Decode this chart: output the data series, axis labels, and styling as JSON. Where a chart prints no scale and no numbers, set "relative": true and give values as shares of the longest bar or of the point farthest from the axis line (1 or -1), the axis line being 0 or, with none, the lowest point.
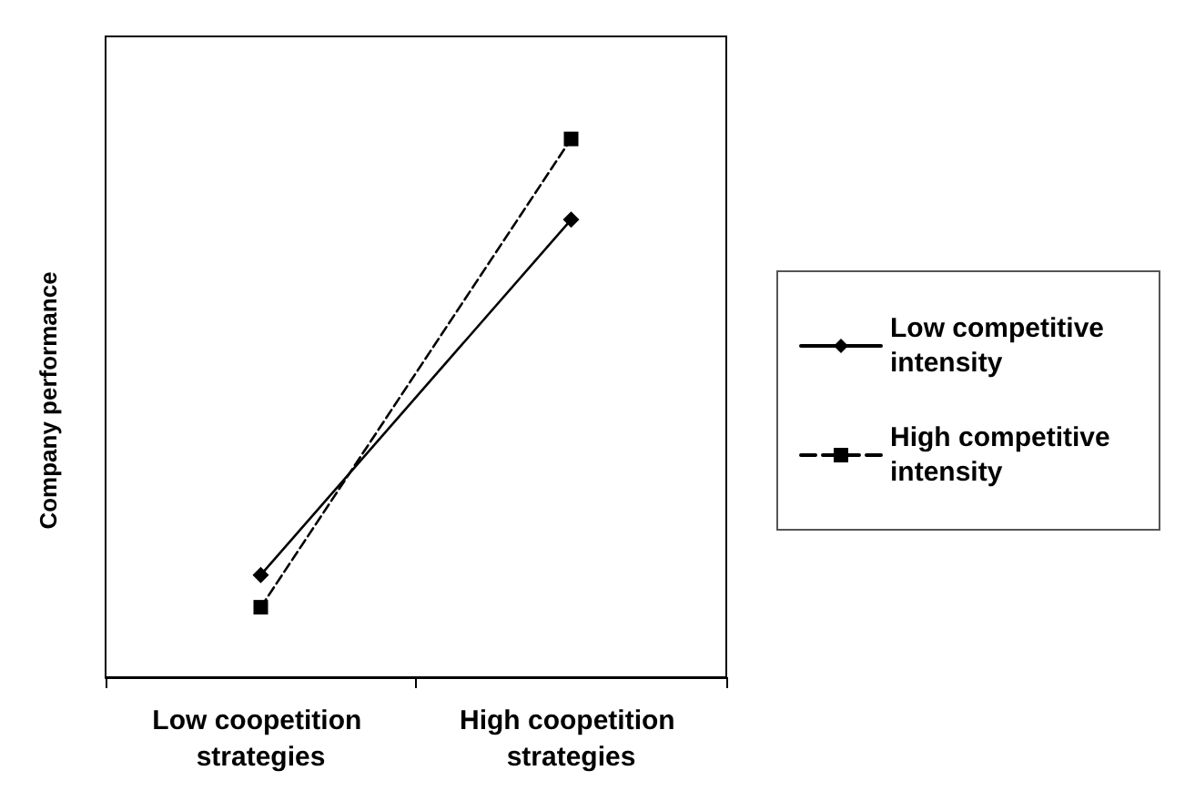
{
  "chart_data": {
    "type": "line",
    "relative": true,
    "ylabel": "Company performance",
    "categories": [
      "Low coopetition strategies",
      "High coopetition strategies"
    ],
    "series": [
      {
        "name": "Low competitive intensity",
        "color": "#000000",
        "marker": "diamond",
        "line_style": "solid",
        "values": [
          0.19,
          0.85
        ]
      },
      {
        "name": "High competitive intensity",
        "color": "#000000",
        "marker": "square",
        "line_style": "dashed",
        "values": [
          0.13,
          1
        ]
      }
    ],
    "legend": "right"
  }
}
